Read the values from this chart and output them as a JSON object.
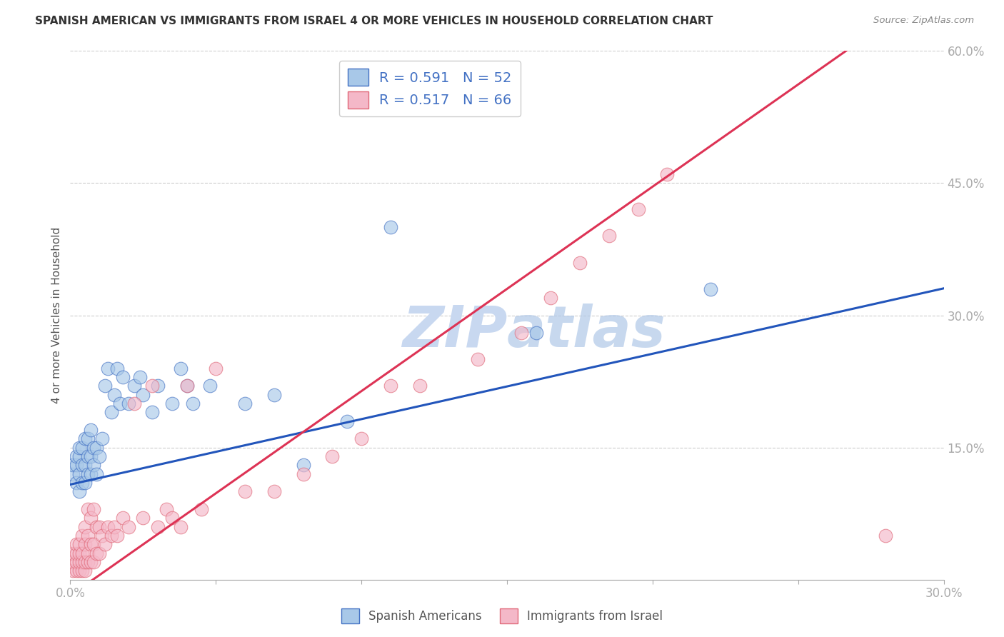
{
  "title": "SPANISH AMERICAN VS IMMIGRANTS FROM ISRAEL 4 OR MORE VEHICLES IN HOUSEHOLD CORRELATION CHART",
  "source": "Source: ZipAtlas.com",
  "ylabel": "4 or more Vehicles in Household",
  "xlim": [
    0,
    0.3
  ],
  "ylim": [
    0,
    0.6
  ],
  "xticks": [
    0.0,
    0.05,
    0.1,
    0.15,
    0.2,
    0.25,
    0.3
  ],
  "yticks": [
    0.0,
    0.15,
    0.3,
    0.45,
    0.6
  ],
  "xtick_labels": [
    "0.0%",
    "",
    "",
    "",
    "",
    "",
    "30.0%"
  ],
  "ytick_labels": [
    "",
    "15.0%",
    "30.0%",
    "45.0%",
    "60.0%"
  ],
  "blue_color": "#a8c8e8",
  "pink_color": "#f4b8c8",
  "blue_edge_color": "#4472c4",
  "pink_edge_color": "#e06878",
  "blue_line_color": "#2255bb",
  "pink_line_color": "#dd3355",
  "watermark_color": "#c8d8f0",
  "blue_reg": [
    0.108,
    0.742
  ],
  "pink_reg": [
    -0.018,
    2.32
  ],
  "blue_scatter_x": [
    0.001,
    0.001,
    0.002,
    0.002,
    0.002,
    0.003,
    0.003,
    0.003,
    0.003,
    0.004,
    0.004,
    0.004,
    0.005,
    0.005,
    0.005,
    0.006,
    0.006,
    0.006,
    0.007,
    0.007,
    0.007,
    0.008,
    0.008,
    0.009,
    0.009,
    0.01,
    0.011,
    0.012,
    0.013,
    0.014,
    0.015,
    0.016,
    0.017,
    0.018,
    0.02,
    0.022,
    0.024,
    0.025,
    0.028,
    0.03,
    0.035,
    0.038,
    0.04,
    0.042,
    0.048,
    0.06,
    0.07,
    0.08,
    0.095,
    0.11,
    0.16,
    0.22
  ],
  "blue_scatter_y": [
    0.12,
    0.13,
    0.11,
    0.13,
    0.14,
    0.1,
    0.12,
    0.14,
    0.15,
    0.11,
    0.13,
    0.15,
    0.11,
    0.13,
    0.16,
    0.12,
    0.14,
    0.16,
    0.12,
    0.14,
    0.17,
    0.13,
    0.15,
    0.12,
    0.15,
    0.14,
    0.16,
    0.22,
    0.24,
    0.19,
    0.21,
    0.24,
    0.2,
    0.23,
    0.2,
    0.22,
    0.23,
    0.21,
    0.19,
    0.22,
    0.2,
    0.24,
    0.22,
    0.2,
    0.22,
    0.2,
    0.21,
    0.13,
    0.18,
    0.4,
    0.28,
    0.33
  ],
  "pink_scatter_x": [
    0.001,
    0.001,
    0.001,
    0.002,
    0.002,
    0.002,
    0.002,
    0.003,
    0.003,
    0.003,
    0.003,
    0.004,
    0.004,
    0.004,
    0.004,
    0.005,
    0.005,
    0.005,
    0.005,
    0.006,
    0.006,
    0.006,
    0.006,
    0.007,
    0.007,
    0.007,
    0.008,
    0.008,
    0.008,
    0.009,
    0.009,
    0.01,
    0.01,
    0.011,
    0.012,
    0.013,
    0.014,
    0.015,
    0.016,
    0.018,
    0.02,
    0.022,
    0.025,
    0.028,
    0.03,
    0.033,
    0.035,
    0.038,
    0.04,
    0.045,
    0.05,
    0.06,
    0.07,
    0.08,
    0.09,
    0.1,
    0.11,
    0.12,
    0.14,
    0.155,
    0.165,
    0.175,
    0.185,
    0.195,
    0.205,
    0.28
  ],
  "pink_scatter_y": [
    0.01,
    0.02,
    0.03,
    0.01,
    0.02,
    0.03,
    0.04,
    0.01,
    0.02,
    0.03,
    0.04,
    0.01,
    0.02,
    0.03,
    0.05,
    0.01,
    0.02,
    0.04,
    0.06,
    0.02,
    0.03,
    0.05,
    0.08,
    0.02,
    0.04,
    0.07,
    0.02,
    0.04,
    0.08,
    0.03,
    0.06,
    0.03,
    0.06,
    0.05,
    0.04,
    0.06,
    0.05,
    0.06,
    0.05,
    0.07,
    0.06,
    0.2,
    0.07,
    0.22,
    0.06,
    0.08,
    0.07,
    0.06,
    0.22,
    0.08,
    0.24,
    0.1,
    0.1,
    0.12,
    0.14,
    0.16,
    0.22,
    0.22,
    0.25,
    0.28,
    0.32,
    0.36,
    0.39,
    0.42,
    0.46,
    0.05
  ]
}
